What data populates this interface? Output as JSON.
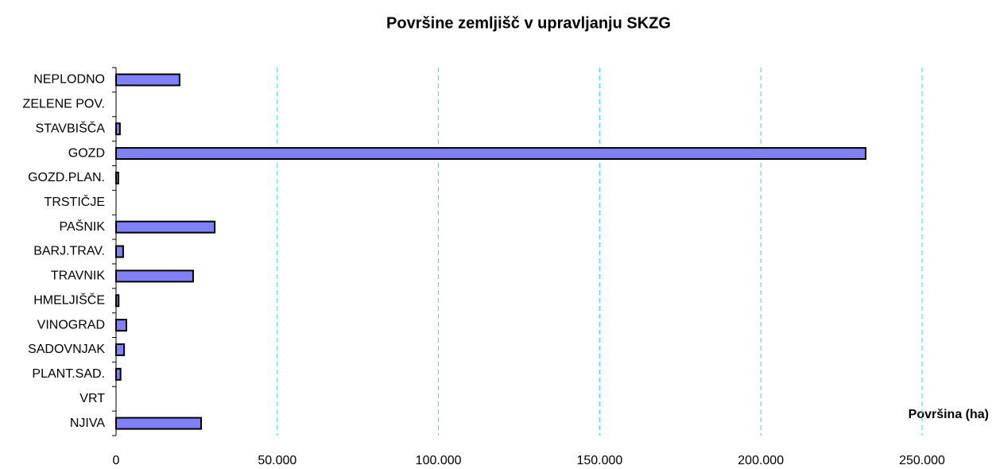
{
  "chart_data": {
    "type": "bar",
    "orientation": "horizontal",
    "title": "Površine zemljišč v upravljanju SKZG",
    "x_label": "Površina (ha)",
    "categories": [
      "NEPLODNO",
      "ZELENE POV.",
      "STAVBIŠČA",
      "GOZD",
      "GOZD.PLAN.",
      "TRSTIČJE",
      "PAŠNIK",
      "BARJ.TRAV.",
      "TRAVNIK",
      "HMELJIŠČE",
      "VINOGRAD",
      "SADOVNJAK",
      "PLANT.SAD.",
      "VRT",
      "NJIVA"
    ],
    "values": [
      19700,
      0,
      1200,
      232500,
      700,
      0,
      30600,
      2200,
      23900,
      800,
      3200,
      2500,
      1400,
      0,
      26400
    ],
    "color": "#8080f8",
    "xlim": [
      0,
      250000
    ],
    "xticks": [
      0,
      {
        "value": 50000,
        "label": "50.000"
      },
      {
        "value": 100000,
        "label": "100.000"
      },
      {
        "value": 150000,
        "label": "150.000"
      },
      {
        "value": 200000,
        "label": "200.000"
      },
      {
        "value": 250000,
        "label": "250.000"
      }
    ],
    "grid": true
  }
}
